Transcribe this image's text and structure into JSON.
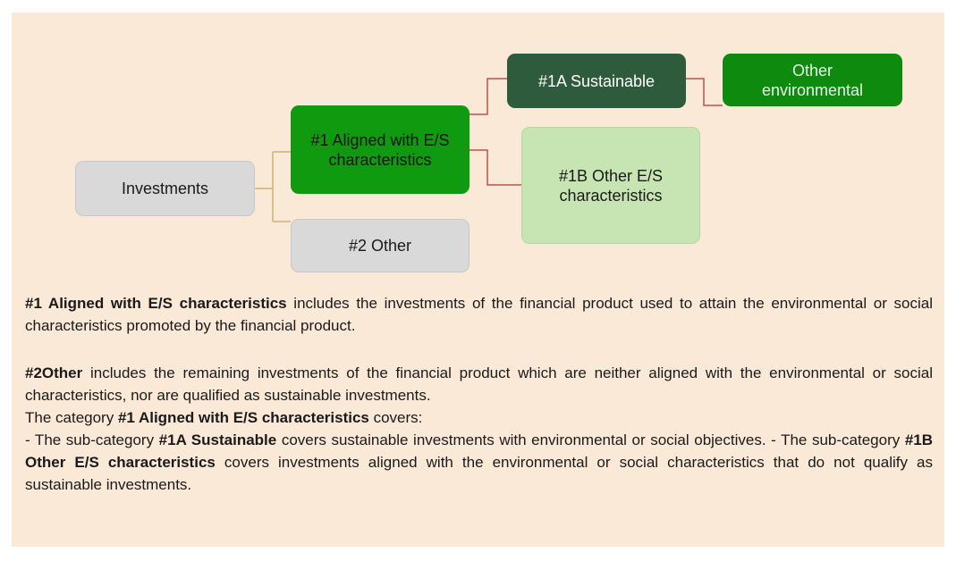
{
  "nodes": [
    {
      "label": "Investments"
    },
    {
      "label": "#1 Aligned with E/S characteristics"
    },
    {
      "label": "#2 Other"
    },
    {
      "label": "#1A Sustainable"
    },
    {
      "label": "#1B Other E/S characteristics"
    },
    {
      "label": "Other environmental"
    }
  ],
  "paragraphs": [
    [
      {
        "text": "#1 Aligned with E/S characteristics",
        "bold": true
      },
      {
        "text": " includes the investments of the financial product used to attain the environmental or social characteristics promoted by the financial product.",
        "bold": false
      }
    ],
    [
      {
        "text": "#2Other",
        "bold": true
      },
      {
        "text": " includes the remaining investments of the financial product which are neither aligned with the environmental or social characteristics, nor are qualified as sustainable investments.",
        "bold": false
      }
    ],
    [
      {
        "text": "The category ",
        "bold": false
      },
      {
        "text": "#1 Aligned with E/S characteristics",
        "bold": true
      },
      {
        "text": " covers:",
        "bold": false
      }
    ],
    [
      {
        "text": "- The sub-category ",
        "bold": false
      },
      {
        "text": "#1A Sustainable",
        "bold": true
      },
      {
        "text": " covers sustainable investments with environmental or social objectives. - The sub-category ",
        "bold": false
      },
      {
        "text": "#1B Other E/S characteristics",
        "bold": true
      },
      {
        "text": " covers investments aligned with the environmental or social characteristics that do not qualify as sustainable investments.",
        "bold": false
      }
    ]
  ]
}
